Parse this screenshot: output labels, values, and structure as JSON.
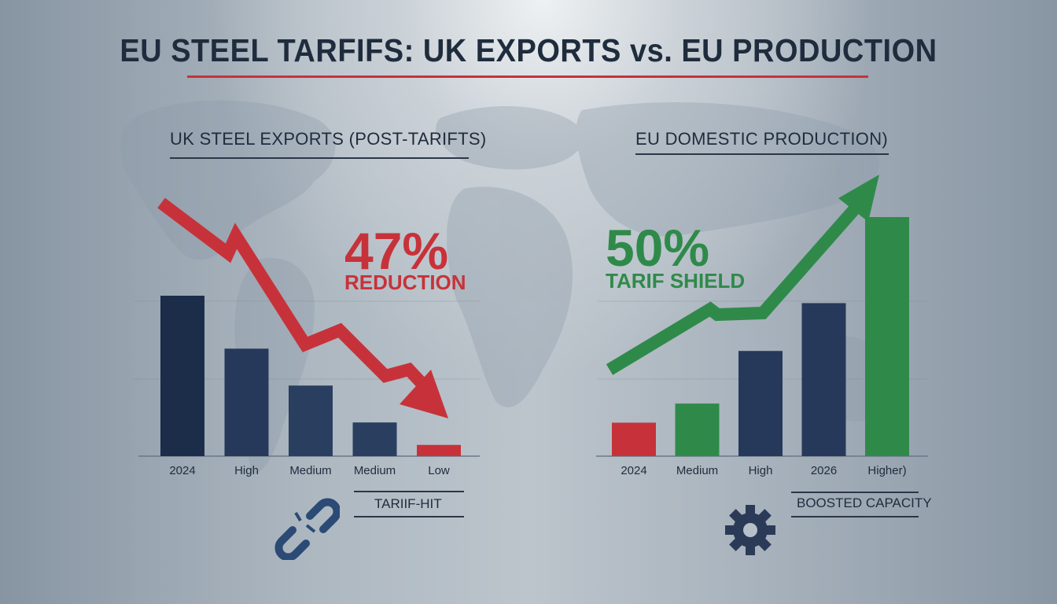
{
  "title": "EU STEEL TARFIFS: UK EXPORTS vs. EU PRODUCTION",
  "left_panel": {
    "subtitle": "UK STEEL EXPORTS (POST-TARIFTS)",
    "stat_value": "47%",
    "stat_label": "REDUCTION",
    "footer_label": "TARIIF-HIT",
    "footer_icon": "broken-chain-icon",
    "trend": "down",
    "color": "#c7323a"
  },
  "right_panel": {
    "subtitle": "EU DOMESTIC PRODUCTION)",
    "stat_value": "50%",
    "stat_label": "TARIF SHIELD",
    "footer_label": "BOOSTED CAPACITY",
    "footer_icon": "gear-icon",
    "trend": "up",
    "color": "#2f8a4a"
  },
  "chart_data": [
    {
      "type": "bar",
      "title": "UK STEEL EXPORTS (POST-TARIFTS)",
      "categories": [
        "2024",
        "High",
        "Medium",
        "Medium",
        "Low"
      ],
      "values": [
        100,
        67,
        44,
        21,
        7
      ],
      "colors": [
        "#1c2d4a",
        "#27395a",
        "#2a3f60",
        "#2a3f60",
        "#c7323a"
      ],
      "ylim": [
        0,
        110
      ],
      "grid": true,
      "annotation": "47% REDUCTION"
    },
    {
      "type": "bar",
      "title": "EU DOMESTIC PRODUCTION)",
      "categories": [
        "2024",
        "Medium",
        "High",
        "2026",
        "Higher)"
      ],
      "values": [
        14,
        22,
        44,
        64,
        100
      ],
      "colors": [
        "#c7323a",
        "#2f8a4a",
        "#27395a",
        "#27395a",
        "#2f8a4a"
      ],
      "ylim": [
        0,
        110
      ],
      "grid": true,
      "annotation": "50% TARIF SHIELD"
    }
  ]
}
